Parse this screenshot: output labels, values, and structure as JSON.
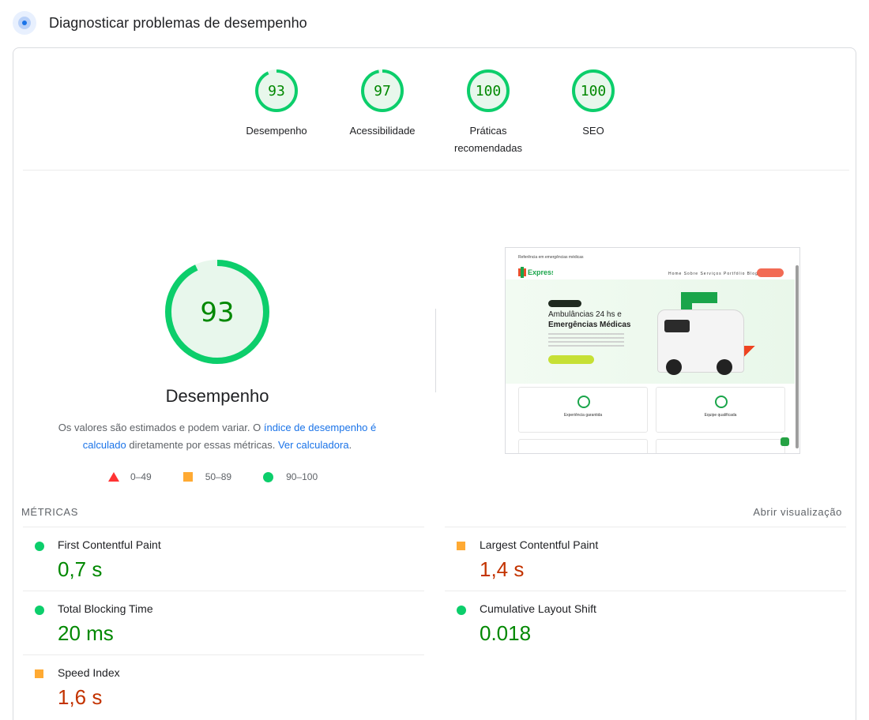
{
  "header": {
    "title": "Diagnosticar problemas de desempenho",
    "icon": "pagespeed-icon"
  },
  "categories": [
    {
      "score": "93",
      "label": "Desempenho"
    },
    {
      "score": "97",
      "label": "Acessibilidade"
    },
    {
      "score": "100",
      "label_line1": "Práticas",
      "label_line2": "recomendadas"
    },
    {
      "score": "100",
      "label": "SEO"
    }
  ],
  "performance": {
    "score": "93",
    "score_value": 0.93,
    "title": "Desempenho",
    "desc_part1": "Os valores são estimados e podem variar. O ",
    "desc_link1": "índice de desempenho é calculado",
    "desc_part2": " diretamente por essas métricas. ",
    "desc_link2": "Ver calculadora",
    "desc_end": "."
  },
  "legend": [
    {
      "range": "0–49",
      "shape": "triangle",
      "color": "#ff3333"
    },
    {
      "range": "50–89",
      "shape": "square",
      "color": "#ffaa33"
    },
    {
      "range": "90–100",
      "shape": "circle",
      "color": "#0cce6b"
    }
  ],
  "screenshot": {
    "topbar": "Referência em emergências médicas",
    "nav": "Home  Sobre  Serviços  Portfólio  Blog",
    "headline_line1": "Ambulâncias 24 hs e",
    "headline_line2": "Emergências Médicas",
    "card1": "Experiência garantida",
    "card2": "Equipe qualificada"
  },
  "metrics_section": {
    "title": "MÉTRICAS",
    "expand_label": "Abrir visualização"
  },
  "metrics": [
    {
      "name": "First Contentful Paint",
      "value": "0,7 s",
      "status": "green"
    },
    {
      "name": "Largest Contentful Paint",
      "value": "1,4 s",
      "status": "orange"
    },
    {
      "name": "Total Blocking Time",
      "value": "20 ms",
      "status": "green"
    },
    {
      "name": "Cumulative Layout Shift",
      "value": "0.018",
      "status": "green"
    },
    {
      "name": "Speed Index",
      "value": "1,6 s",
      "status": "orange"
    }
  ],
  "colors": {
    "pass": "#0cce6b",
    "pass_text": "#008800",
    "average": "#ffaa33",
    "average_text": "#c33300",
    "fail": "#ff3333",
    "link": "#1a73e8"
  }
}
